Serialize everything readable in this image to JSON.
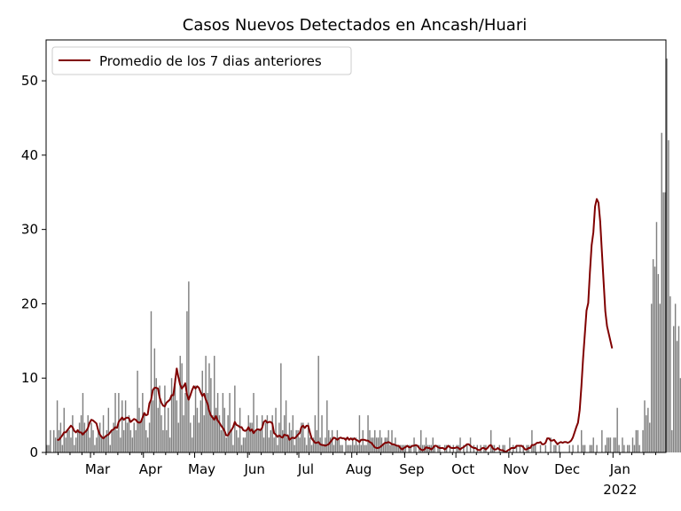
{
  "chart_data": {
    "type": "bar",
    "title": "Casos Nuevos Detectados en Ancash/Huari",
    "xlabel": "",
    "ylabel": "",
    "ylim": [
      0,
      55.5
    ],
    "yticks": [
      0,
      10,
      20,
      30,
      40,
      50
    ],
    "x_start_date": "2021-02-03",
    "x_end_date": "2022-01-31",
    "month_ticks": [
      {
        "date": "2021-03-01",
        "label": "Mar"
      },
      {
        "date": "2021-04-01",
        "label": "Apr"
      },
      {
        "date": "2021-05-01",
        "label": "May"
      },
      {
        "date": "2021-06-01",
        "label": "Jun"
      },
      {
        "date": "2021-07-01",
        "label": "Jul"
      },
      {
        "date": "2021-08-01",
        "label": "Aug"
      },
      {
        "date": "2021-09-01",
        "label": "Sep"
      },
      {
        "date": "2021-10-01",
        "label": "Oct"
      },
      {
        "date": "2021-11-01",
        "label": "Nov"
      },
      {
        "date": "2021-12-01",
        "label": "Dec"
      },
      {
        "date": "2022-01-01",
        "label": "Jan"
      }
    ],
    "year_label": "2022",
    "bar_color": "#808080",
    "line_color": "#800000",
    "grid": false,
    "legend": {
      "position": "top-left",
      "entries": [
        "Promedio de los 7 dias anteriores"
      ]
    },
    "series": [
      {
        "name": "Casos diarios",
        "kind": "bar",
        "values": [
          1,
          1,
          3,
          0,
          3,
          2,
          7,
          3,
          4,
          1,
          6,
          2,
          3,
          3,
          2,
          5,
          1,
          2,
          3,
          4,
          5,
          8,
          4,
          3,
          5,
          2,
          4,
          3,
          1,
          2,
          3,
          4,
          2,
          5,
          2,
          3,
          6,
          1,
          3,
          4,
          8,
          3,
          8,
          2,
          7,
          3,
          7,
          4,
          5,
          3,
          2,
          4,
          3,
          11,
          6,
          4,
          8,
          5,
          3,
          2,
          4,
          19,
          7,
          14,
          10,
          6,
          9,
          5,
          3,
          9,
          3,
          6,
          2,
          10,
          8,
          10,
          7,
          4,
          13,
          12,
          5,
          8,
          19,
          23,
          4,
          2,
          5,
          9,
          6,
          4,
          7,
          11,
          5,
          13,
          8,
          12,
          10,
          5,
          13,
          6,
          8,
          5,
          3,
          8,
          6,
          2,
          5,
          8,
          3,
          1,
          9,
          3,
          2,
          6,
          1,
          2,
          2,
          3,
          5,
          4,
          4,
          8,
          3,
          5,
          3,
          3,
          5,
          2,
          4,
          5,
          2,
          3,
          5,
          2,
          6,
          1,
          4,
          12,
          3,
          5,
          7,
          2,
          4,
          3,
          5,
          1,
          3,
          3,
          2,
          4,
          4,
          2,
          1,
          4,
          2,
          1,
          2,
          5,
          3,
          13,
          2,
          5,
          1,
          2,
          7,
          3,
          2,
          3,
          1,
          2,
          3,
          2,
          1,
          1,
          0,
          2,
          1,
          1,
          1,
          2,
          1,
          2,
          1,
          5,
          1,
          3,
          1,
          1,
          5,
          3,
          2,
          2,
          3,
          2,
          2,
          3,
          2,
          1,
          2,
          2,
          3,
          1,
          3,
          1,
          2,
          1,
          1,
          1,
          1,
          1,
          1,
          0,
          1,
          1,
          0,
          2,
          1,
          0,
          1,
          3,
          1,
          1,
          2,
          1,
          1,
          1,
          2,
          1,
          0,
          1,
          1,
          0,
          0,
          1,
          1,
          0,
          1,
          0,
          1,
          0,
          1,
          1,
          2,
          0,
          1,
          0,
          1,
          0,
          2,
          0,
          1,
          0,
          1,
          0,
          1,
          0,
          1,
          1,
          0,
          0,
          3,
          1,
          1,
          0,
          0,
          1,
          0,
          1,
          1,
          0,
          0,
          2,
          0,
          1,
          0,
          1,
          0,
          1,
          0,
          1,
          0,
          1,
          1,
          0,
          3,
          1,
          1,
          0,
          0,
          1,
          0,
          0,
          1,
          0,
          0,
          2,
          0,
          1,
          1,
          0,
          1,
          0,
          0,
          0,
          0,
          0,
          1,
          0,
          1,
          0,
          0,
          1,
          0,
          3,
          1,
          1,
          0,
          0,
          1,
          1,
          2,
          0,
          1,
          0,
          0,
          3,
          0,
          1,
          2,
          2,
          2,
          0,
          2,
          2,
          6,
          1,
          0,
          2,
          1,
          0,
          1,
          1,
          0,
          2,
          1,
          3,
          3,
          1,
          0,
          3,
          7,
          5,
          6,
          4,
          20,
          26,
          25,
          31,
          24,
          20,
          43,
          35,
          35,
          53,
          42,
          21,
          3,
          17,
          20,
          15,
          17,
          10,
          14
        ]
      },
      {
        "name": "Promedio de los 7 dias anteriores",
        "kind": "line",
        "values": [
          1.7,
          1.7,
          2.0,
          2.3,
          2.7,
          2.7,
          3.0,
          3.3,
          3.6,
          3.4,
          2.9,
          2.7,
          3.0,
          2.7,
          2.7,
          2.4,
          2.7,
          2.9,
          3.3,
          4.0,
          4.4,
          4.3,
          4.1,
          3.9,
          3.0,
          2.4,
          2.1,
          1.9,
          2.1,
          2.3,
          2.4,
          2.7,
          3.0,
          3.1,
          3.4,
          3.3,
          4.1,
          4.4,
          4.7,
          4.4,
          4.6,
          4.7,
          4.6,
          4.1,
          4.3,
          4.5,
          4.4,
          4.1,
          4.0,
          4.1,
          4.7,
          5.3,
          5.0,
          5.1,
          6.6,
          7.1,
          8.4,
          8.7,
          8.7,
          8.6,
          7.4,
          6.7,
          6.3,
          6.2,
          6.7,
          6.9,
          7.1,
          7.7,
          7.7,
          9.4,
          11.3,
          10.1,
          9.1,
          8.6,
          8.9,
          9.3,
          7.8,
          7.1,
          7.7,
          8.4,
          8.9,
          8.6,
          8.9,
          8.7,
          8.1,
          7.6,
          7.9,
          7.1,
          6.6,
          5.6,
          5.0,
          4.7,
          4.4,
          4.9,
          4.3,
          4.0,
          3.6,
          3.3,
          2.9,
          2.3,
          2.3,
          2.7,
          3.0,
          3.4,
          4.1,
          3.7,
          3.6,
          3.4,
          3.4,
          3.0,
          2.9,
          3.0,
          3.4,
          2.9,
          3.1,
          2.6,
          2.9,
          3.1,
          3.1,
          3.0,
          3.3,
          4.1,
          4.3,
          4.0,
          4.1,
          4.1,
          3.9,
          2.6,
          2.4,
          2.1,
          2.3,
          2.1,
          2.0,
          2.4,
          2.3,
          2.3,
          1.7,
          1.9,
          2.0,
          1.9,
          2.1,
          2.4,
          2.6,
          3.4,
          3.6,
          3.3,
          3.6,
          3.6,
          2.7,
          1.9,
          1.6,
          1.3,
          1.3,
          1.4,
          1.1,
          1.0,
          1.0,
          0.9,
          1.0,
          1.1,
          1.4,
          1.7,
          2.0,
          1.9,
          1.7,
          1.9,
          2.0,
          1.9,
          1.9,
          1.7,
          2.0,
          1.7,
          1.9,
          1.7,
          1.9,
          1.7,
          1.6,
          1.4,
          1.7,
          1.7,
          1.7,
          1.6,
          1.6,
          1.4,
          1.3,
          1.0,
          0.7,
          0.6,
          0.6,
          0.7,
          0.9,
          1.1,
          1.3,
          1.3,
          1.4,
          1.3,
          1.1,
          1.1,
          1.0,
          0.9,
          0.9,
          0.6,
          0.4,
          0.6,
          0.7,
          0.9,
          0.7,
          0.7,
          0.9,
          0.9,
          1.0,
          0.9,
          0.6,
          0.4,
          0.3,
          0.4,
          0.7,
          0.6,
          0.6,
          0.4,
          0.6,
          0.9,
          0.9,
          0.7,
          0.6,
          0.6,
          0.6,
          0.4,
          0.6,
          0.9,
          0.7,
          0.6,
          0.6,
          0.6,
          0.7,
          0.6,
          0.4,
          0.6,
          0.7,
          0.9,
          1.1,
          1.1,
          0.9,
          0.7,
          0.6,
          0.6,
          0.4,
          0.3,
          0.4,
          0.6,
          0.6,
          0.4,
          0.6,
          0.9,
          1.0,
          0.6,
          0.4,
          0.4,
          0.6,
          0.4,
          0.3,
          0.3,
          0.1,
          0.1,
          0.3,
          0.4,
          0.6,
          0.6,
          0.6,
          0.9,
          0.9,
          0.9,
          0.9,
          0.7,
          0.4,
          0.4,
          0.6,
          0.6,
          1.0,
          1.0,
          1.1,
          1.3,
          1.3,
          1.4,
          1.1,
          1.1,
          1.3,
          1.9,
          1.9,
          1.6,
          1.6,
          1.7,
          1.4,
          1.1,
          1.3,
          1.4,
          1.3,
          1.4,
          1.4,
          1.3,
          1.4,
          1.6,
          2.0,
          2.7,
          3.4,
          4.0,
          5.7,
          8.9,
          12.7,
          15.9,
          19.1,
          20.1,
          24.3,
          27.9,
          29.6,
          33.1,
          34.1,
          33.6,
          31.1,
          27.0,
          23.0,
          19.0,
          17.0,
          16.0,
          15.0,
          14.0
        ]
      }
    ]
  }
}
